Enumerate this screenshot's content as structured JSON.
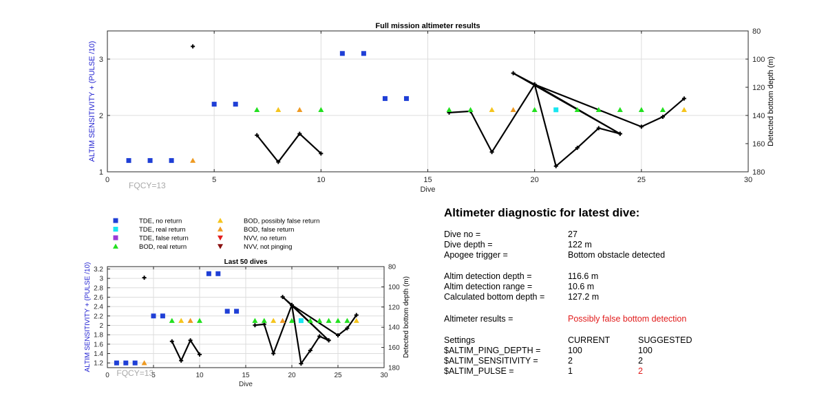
{
  "top_chart": {
    "title": "Full mission altimeter results",
    "xlabel": "Dive",
    "ylabel_left": "ALTIM SENSITIVITY + (PULSE /10)",
    "ylabel_right": "Detected bottom depth (m)",
    "annotation": "FQCY=13",
    "xlim": [
      0,
      30
    ],
    "ylim_left": [
      1,
      3.5
    ],
    "ylim_right": [
      80,
      180
    ],
    "xticks": [
      "0",
      "5",
      "10",
      "15",
      "20",
      "25",
      "30"
    ],
    "yticks_left": [
      "1",
      "2",
      "3"
    ],
    "yticks_right": [
      "80",
      "100",
      "120",
      "140",
      "160",
      "180"
    ]
  },
  "bottom_chart": {
    "title": "Last 50 dives",
    "xlabel": "Dive",
    "ylabel_left": "ALTIM SENSITIVITY + (PULSE /10)",
    "ylabel_right": "Detected bottom depth (m)",
    "annotation": "FQCY=13",
    "xticks": [
      "0",
      "5",
      "10",
      "15",
      "20",
      "25",
      "30"
    ],
    "yticks_left": [
      "1.2",
      "1.4",
      "1.6",
      "1.8",
      "2",
      "2.2",
      "2.4",
      "2.6",
      "2.8",
      "3",
      "3.2"
    ],
    "yticks_right": [
      "80",
      "100",
      "120",
      "140",
      "160",
      "180"
    ]
  },
  "legend": [
    {
      "label": "TDE, no return",
      "marker": "square",
      "color": "#1f3fd6"
    },
    {
      "label": "TDE, real return",
      "marker": "square",
      "color": "#19e6f0"
    },
    {
      "label": "TDE, false return",
      "marker": "square",
      "color": "#9b3ad6"
    },
    {
      "label": "BOD, real return",
      "marker": "triangle-up",
      "color": "#22e01f"
    },
    {
      "label": "BOD, possibly false return",
      "marker": "triangle-up",
      "color": "#f5c51e"
    },
    {
      "label": "BOD, false return",
      "marker": "triangle-up",
      "color": "#ee9a22"
    },
    {
      "label": "NVV, no return",
      "marker": "triangle-down",
      "color": "#e31d1d"
    },
    {
      "label": "NVV, not pinging",
      "marker": "triangle-down",
      "color": "#8a1010"
    }
  ],
  "chart_data": {
    "type": "scatter",
    "x": [
      1,
      2,
      3,
      4,
      5,
      6,
      7,
      8,
      9,
      10,
      11,
      12,
      13,
      14,
      16,
      17,
      18,
      19,
      20,
      21,
      22,
      23,
      24,
      25,
      26,
      27
    ],
    "series": [
      {
        "name": "TDE, no return",
        "marker": "square",
        "color": "#1f3fd6",
        "points": [
          [
            1,
            1.2
          ],
          [
            2,
            1.2
          ],
          [
            3,
            1.2
          ],
          [
            5,
            2.2
          ],
          [
            6,
            2.2
          ],
          [
            11,
            3.1
          ],
          [
            12,
            3.1
          ],
          [
            13,
            2.3
          ],
          [
            14,
            2.3
          ]
        ]
      },
      {
        "name": "TDE, real return",
        "marker": "square",
        "color": "#19e6f0",
        "points": [
          [
            21,
            2.1
          ]
        ]
      },
      {
        "name": "BOD, real return",
        "marker": "triangle-up",
        "color": "#22e01f",
        "points": [
          [
            7,
            2.1
          ],
          [
            10,
            2.1
          ],
          [
            16,
            2.1
          ],
          [
            17,
            2.1
          ],
          [
            20,
            2.1
          ],
          [
            22,
            2.1
          ],
          [
            23,
            2.1
          ],
          [
            24,
            2.1
          ],
          [
            25,
            2.1
          ],
          [
            26,
            2.1
          ]
        ]
      },
      {
        "name": "BOD, possibly false return",
        "marker": "triangle-up",
        "color": "#f5c51e",
        "points": [
          [
            8,
            2.1
          ],
          [
            18,
            2.1
          ],
          [
            27,
            2.1
          ]
        ]
      },
      {
        "name": "BOD, false return",
        "marker": "triangle-up",
        "color": "#ee9a22",
        "points": [
          [
            4,
            1.2
          ],
          [
            9,
            2.1
          ],
          [
            19,
            2.1
          ]
        ]
      }
    ],
    "bottom_depth_axis": "right",
    "bottom_depth_points": [
      [
        4,
        91
      ],
      [
        7,
        154
      ],
      [
        8,
        173
      ],
      [
        9,
        153
      ],
      [
        10,
        167
      ]
    ],
    "bottom_depth_line": [
      [
        16,
        138
      ],
      [
        17,
        137
      ],
      [
        18,
        166
      ],
      [
        20,
        118
      ],
      [
        19,
        110
      ],
      [
        24,
        153
      ],
      [
        20,
        118
      ],
      [
        21,
        176
      ],
      [
        22,
        163
      ],
      [
        23,
        149
      ],
      [
        24,
        153
      ],
      [
        20,
        118
      ],
      [
        25,
        148
      ],
      [
        26,
        141
      ],
      [
        27,
        128
      ]
    ]
  },
  "diagnostic": {
    "title": "Altimeter diagnostic for latest dive:",
    "rows1": [
      {
        "label": "Dive no =",
        "value": "27"
      },
      {
        "label": "Dive depth =",
        "value": "122 m"
      },
      {
        "label": "Apogee trigger =",
        "value": "Bottom obstacle detected"
      }
    ],
    "rows2": [
      {
        "label": "Altim detection depth =",
        "value": "116.6 m"
      },
      {
        "label": "Altim detection range =",
        "value": "10.6 m"
      },
      {
        "label": "Calculated bottom depth =",
        "value": "127.2 m"
      }
    ],
    "result_label": "Altimeter results =",
    "result_value": "Possibly false bottom detection",
    "result_color": "#e11b1b",
    "settings_header": {
      "label": "Settings",
      "current": "CURRENT",
      "suggested": "SUGGESTED"
    },
    "settings": [
      {
        "label": "$ALTIM_PING_DEPTH =",
        "current": "100",
        "suggested": "100",
        "changed": false
      },
      {
        "label": "$ALTIM_SENSITIVITY =",
        "current": "2",
        "suggested": "2",
        "changed": false
      },
      {
        "label": "$ALTIM_PULSE =",
        "current": "1",
        "suggested": "2",
        "changed": true
      }
    ]
  },
  "colors": {
    "axis_label_blue": "#1f1fd0",
    "grid": "#dcdcdc",
    "line": "#000000",
    "annotation": "#a8a8a8"
  }
}
